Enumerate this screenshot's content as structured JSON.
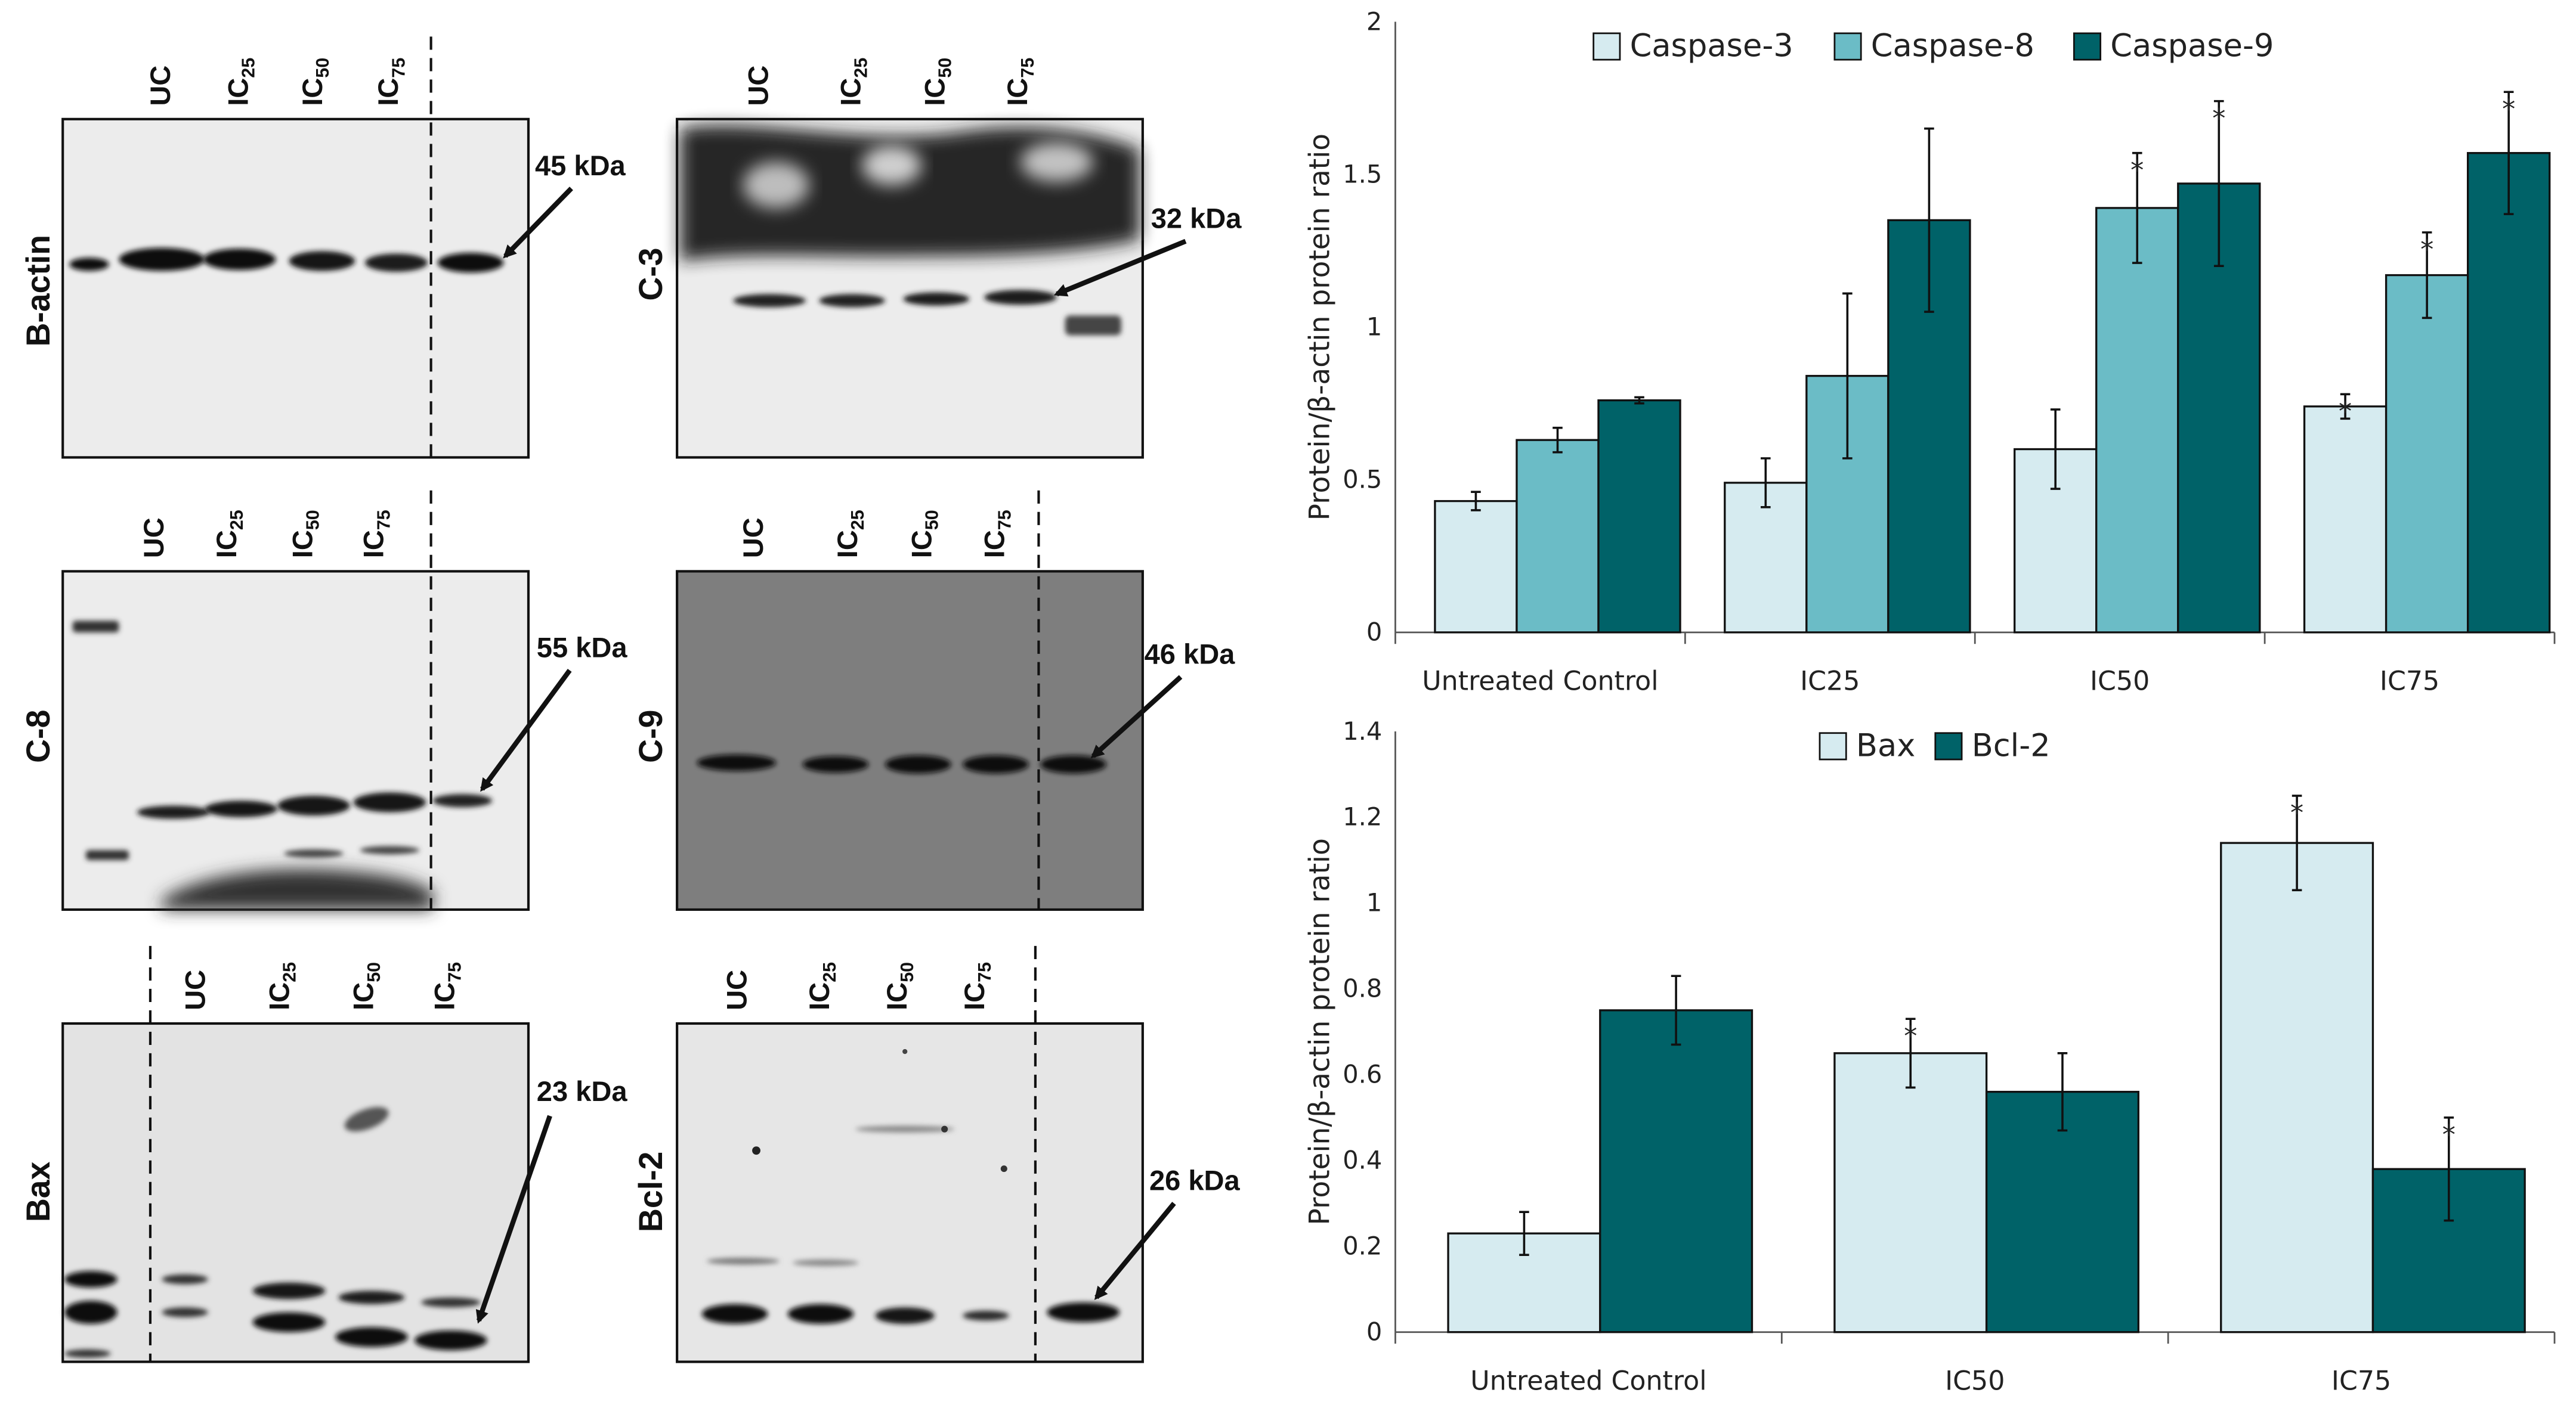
{
  "blots": {
    "bactin": {
      "label": "B-actin",
      "kda": "45 kDa"
    },
    "c3": {
      "label": "C-3",
      "kda": "32 kDa"
    },
    "c8": {
      "label": "C-8",
      "kda": "55 kDa"
    },
    "c9": {
      "label": "C-9",
      "kda": "46 kDa"
    },
    "bax": {
      "label": "Bax",
      "kda": "23 kDa"
    },
    "bcl2": {
      "label": "Bcl-2",
      "kda": "26 kDa"
    },
    "lanes": [
      {
        "main": "UC",
        "sub": ""
      },
      {
        "main": "IC",
        "sub": "25"
      },
      {
        "main": "IC",
        "sub": "50"
      },
      {
        "main": "IC",
        "sub": "75"
      }
    ]
  },
  "chart_data": [
    {
      "type": "bar",
      "categories": [
        "Untreated Control",
        "IC25",
        "IC50",
        "IC75"
      ],
      "series": [
        {
          "name": "Caspase-3",
          "color": "#d6ebf0",
          "values": [
            0.43,
            0.49,
            0.6,
            0.74
          ],
          "errors": [
            0.03,
            0.08,
            0.13,
            0.04
          ],
          "significant": [
            false,
            false,
            false,
            true
          ]
        },
        {
          "name": "Caspase-8",
          "color": "#6bbcc6",
          "values": [
            0.63,
            0.84,
            1.39,
            1.17
          ],
          "errors": [
            0.04,
            0.27,
            0.18,
            0.14
          ],
          "significant": [
            false,
            false,
            true,
            true
          ]
        },
        {
          "name": "Caspase-9",
          "color": "#006268",
          "values": [
            0.76,
            1.35,
            1.47,
            1.57
          ],
          "errors": [
            0.01,
            0.3,
            0.27,
            0.2
          ],
          "significant": [
            false,
            false,
            true,
            true
          ]
        }
      ],
      "title": "",
      "xlabel": "",
      "ylabel": "Protein/β-actin protein ratio",
      "ylim": [
        0,
        2
      ],
      "yticks": [
        "0",
        "0.5",
        "1",
        "1.5",
        "2"
      ],
      "significance_marker": "*",
      "legend": "top"
    },
    {
      "type": "bar",
      "categories": [
        "Untreated Control",
        "IC50",
        "IC75"
      ],
      "series": [
        {
          "name": "Bax",
          "color": "#d6ebf0",
          "values": [
            0.23,
            0.65,
            1.14
          ],
          "errors": [
            0.05,
            0.08,
            0.11
          ],
          "significant": [
            false,
            true,
            true
          ]
        },
        {
          "name": "Bcl-2",
          "color": "#006268",
          "values": [
            0.75,
            0.56,
            0.38
          ],
          "errors": [
            0.08,
            0.09,
            0.12
          ],
          "significant": [
            false,
            false,
            true
          ]
        }
      ],
      "title": "",
      "xlabel": "",
      "ylabel": "Protein/β-actin protein ratio",
      "ylim": [
        0,
        1.4
      ],
      "yticks": [
        "0",
        "0.2",
        "0.4",
        "0.6",
        "0.8",
        "1",
        "1.2",
        "1.4"
      ],
      "significance_marker": "*",
      "legend": "top"
    }
  ]
}
